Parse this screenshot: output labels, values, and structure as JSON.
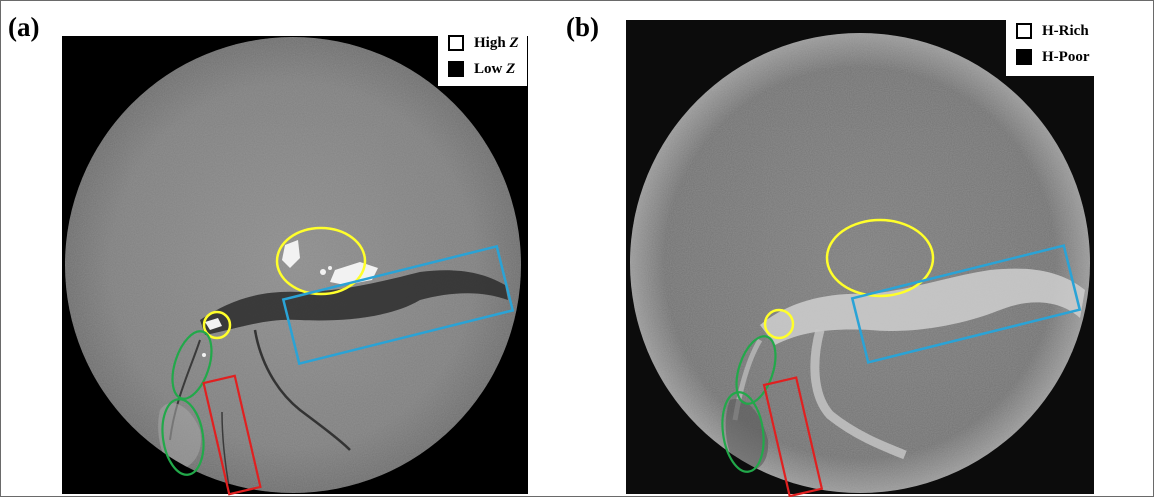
{
  "panels": [
    {
      "label": "(a)",
      "legend": [
        {
          "text": "High",
          "italic": "Z",
          "color": "#ffffff"
        },
        {
          "text": "Low",
          "italic": "Z",
          "color": "#000000"
        }
      ]
    },
    {
      "label": "(b)",
      "legend": [
        {
          "text": "H-Rich",
          "italic": "",
          "color": "#ffffff"
        },
        {
          "text": "H-Poor",
          "italic": "",
          "color": "#000000"
        }
      ]
    }
  ],
  "annotation_colors": {
    "yellow": "#ffff2b",
    "blue": "#2aa3d6",
    "green": "#22a84a",
    "red": "#e02020"
  }
}
